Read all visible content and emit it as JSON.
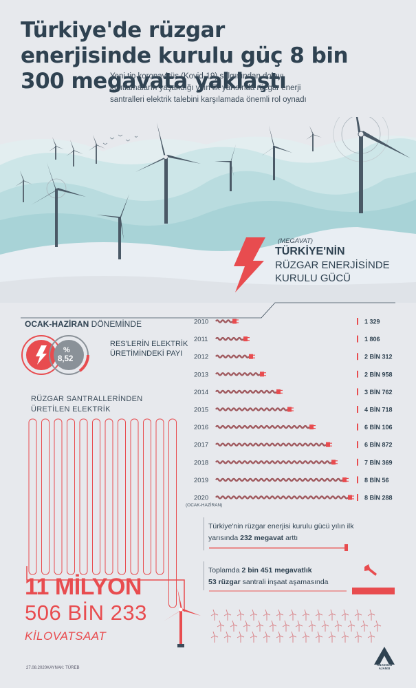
{
  "header": {
    "title": "Türkiye'de rüzgar enerjisinde kurulu güç 8 bin 300 megavata yaklaştı",
    "subtitle": "Yeni tip koronavirüs (Kovid-19) salgınından dolayı kısıtlamaların yaşandığı yılın ilk yarısında rüzgar enerji santralleri elektrik talebini karşılamada önemli rol oynadı"
  },
  "chart_data": [
    {
      "type": "bar",
      "title": "TÜRKİYE'NİN RÜZGAR ENERJİSİNDE KURULU GÜCÜ",
      "unit": "(MEGAVAT)",
      "categories": [
        "2010",
        "2011",
        "2012",
        "2013",
        "2014",
        "2015",
        "2016",
        "2017",
        "2018",
        "2019",
        "2020"
      ],
      "category_note": "(OCAK-HAZİRAN)",
      "values": [
        1329,
        1806,
        2312,
        2958,
        3762,
        4718,
        6106,
        6872,
        7369,
        8056,
        8288
      ],
      "value_labels": [
        "1 329",
        "1 806",
        "2 BİN 312",
        "2 BİN 958",
        "3 BİN 762",
        "4 BİN 718",
        "6 BİN 106",
        "6 BİN 872",
        "7 BİN 369",
        "8 BİN 56",
        "8 BİN 288"
      ],
      "orientation": "horizontal"
    }
  ],
  "share": {
    "period_bold": "OCAK-HAZİRAN",
    "period_rest": "DÖNEMİNDE",
    "percent_sign": "%",
    "percent_value": "8,52",
    "percent": 8.52,
    "label": "RES'LERİN ELEKTRİK ÜRETİMİNDEKİ PAYI"
  },
  "production": {
    "label": "RÜZGAR SANTRALLERİNDEN ÜRETİLEN ELEKTRİK",
    "line1": "11 MİLYON",
    "line2": "506 BİN 233",
    "unit": "KİLOVATSAAT"
  },
  "notes": {
    "n1_pre": "Türkiye'nin rüzgar enerjisi kurulu gücü yılın ilk yarısında",
    "n1_bold": "232 megavat",
    "n1_post": "arttı",
    "n2_pre": "Toplamda",
    "n2_bold1": "2 bin 451 megavatlık",
    "n2_bold2": "53 rüzgar",
    "n2_post": "santrali inşaat aşamasında"
  },
  "footer": {
    "date": "27.08.2020",
    "source": "KAYNAK: TÜREB",
    "logo": "ANADOLU AJANSI"
  },
  "colors": {
    "accent": "#e84c4f",
    "dark": "#2f4251",
    "bg": "#e7e9ed",
    "hill": "#bcdde0"
  }
}
